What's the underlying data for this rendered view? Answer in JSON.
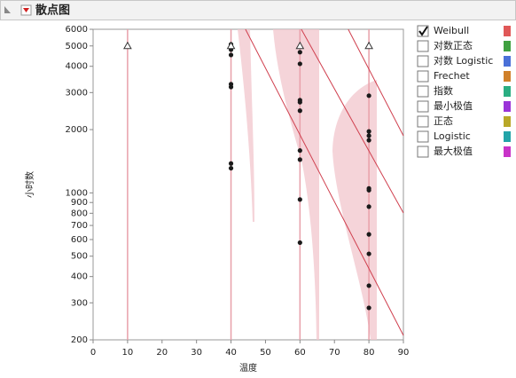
{
  "chart_data": {
    "type": "scatter",
    "title": "散点图",
    "x_label": "温度",
    "y_label": "小时数",
    "x": [
      40,
      40,
      40,
      40,
      40,
      40,
      40,
      40,
      60,
      60,
      60,
      60,
      60,
      60,
      60,
      60,
      60,
      80,
      80,
      80,
      80,
      80,
      80,
      80,
      80,
      80,
      80,
      80
    ],
    "values": [
      5090,
      4950,
      4800,
      4530,
      3290,
      3190,
      1380,
      1310,
      4670,
      4110,
      2760,
      2700,
      2460,
      1590,
      1440,
      930,
      580,
      2900,
      1960,
      1870,
      1780,
      1050,
      1030,
      860,
      635,
      513,
      362,
      284
    ],
    "color": "#1a1a1a",
    "censored": {
      "x": [
        10,
        40,
        60,
        80
      ],
      "values": [
        5000,
        5000,
        5000,
        5000
      ]
    },
    "fit_lines": [
      {
        "x": [
          44.2,
          90
        ],
        "values": [
          6000,
          210
        ],
        "color": "#d0404f"
      },
      {
        "x": [
          60.4,
          90
        ],
        "values": [
          6000,
          803
        ],
        "color": "#d0404f"
      },
      {
        "x": [
          74,
          90
        ],
        "values": [
          6000,
          1870
        ],
        "color": "#d0404f"
      }
    ],
    "xlim": [
      0,
      90
    ],
    "xticks": [
      0,
      10,
      20,
      30,
      40,
      50,
      60,
      70,
      80,
      90
    ],
    "ylim": [
      200,
      6000
    ],
    "ylog": true,
    "yticks": [
      200,
      300,
      400,
      500,
      600,
      700,
      800,
      900,
      1000,
      2000,
      3000,
      4000,
      5000,
      6000
    ],
    "legend": [
      {
        "label": "Weibull",
        "checked": true,
        "color": "#e05858"
      },
      {
        "label": "对数正态",
        "checked": false,
        "color": "#3fa040"
      },
      {
        "label": "对数 Logistic",
        "checked": false,
        "color": "#4a70d8"
      },
      {
        "label": "Frechet",
        "checked": false,
        "color": "#d0802a"
      },
      {
        "label": "指数",
        "checked": false,
        "color": "#2aae82"
      },
      {
        "label": "最小极值",
        "checked": false,
        "color": "#9a34d8"
      },
      {
        "label": "正态",
        "checked": false,
        "color": "#b8a828"
      },
      {
        "label": "Logistic",
        "checked": false,
        "color": "#22a4a8"
      },
      {
        "label": "最大极值",
        "checked": false,
        "color": "#c834c8"
      }
    ]
  }
}
